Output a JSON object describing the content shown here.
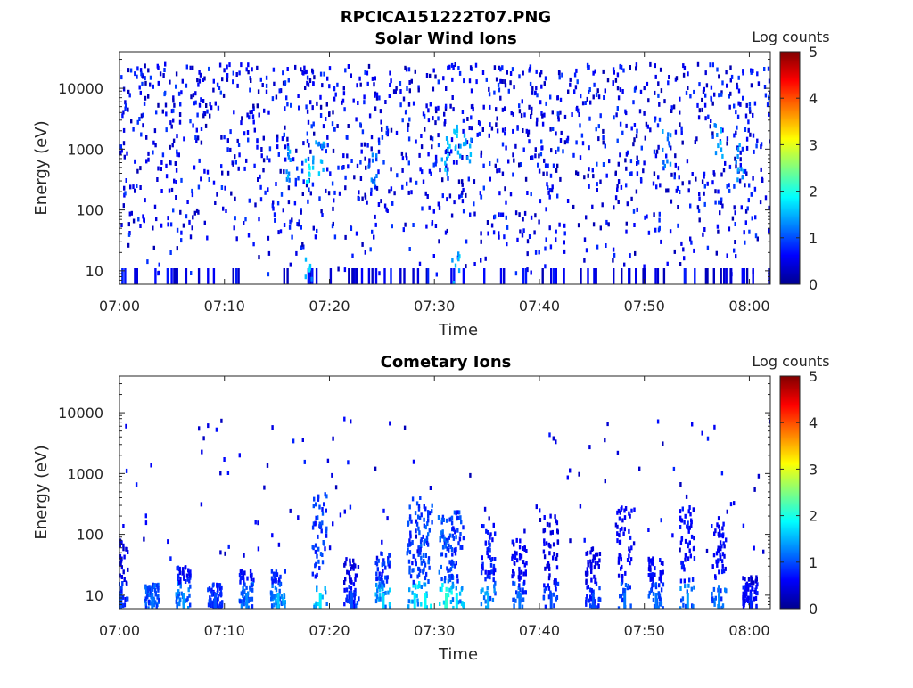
{
  "figure_title": "RPCICA151222T07.PNG",
  "colormap": [
    "#00008f",
    "#0000ff",
    "#0080ff",
    "#00ffff",
    "#80ff80",
    "#ffff00",
    "#ff8000",
    "#ff0000",
    "#800000"
  ],
  "chart_data": [
    {
      "type": "heatmap",
      "title": "Solar Wind Ions",
      "xlabel": "Time",
      "ylabel": "Energy (eV)",
      "x_range": [
        "07:00",
        "08:02"
      ],
      "x_ticks": [
        "07:00",
        "07:10",
        "07:20",
        "07:30",
        "07:40",
        "07:50",
        "08:00"
      ],
      "y_scale": "log",
      "y_range": [
        6,
        40000
      ],
      "y_ticks": [
        "10",
        "100",
        "1000",
        "10000"
      ],
      "colorbar": {
        "label": "Log counts",
        "range": [
          0,
          5
        ],
        "ticks": [
          "0",
          "1",
          "2",
          "3",
          "4",
          "5"
        ]
      },
      "description_of_data": "sparse scatter of 0-1 log counts across 10 eV-20 keV; brighter (~1.5-2) clusters near 300-1500 eV around 07:16-07:19, 07:31-07:33, 07:52, 07:57-08:01",
      "hot_spots": [
        {
          "t": "07:16",
          "e": 600,
          "v": 1.6
        },
        {
          "t": "07:18",
          "e": 450,
          "v": 1.9
        },
        {
          "t": "07:19",
          "e": 700,
          "v": 1.7
        },
        {
          "t": "07:24",
          "e": 500,
          "v": 1.4
        },
        {
          "t": "07:31",
          "e": 800,
          "v": 1.8
        },
        {
          "t": "07:32",
          "e": 1500,
          "v": 1.9
        },
        {
          "t": "07:33",
          "e": 1200,
          "v": 1.6
        },
        {
          "t": "07:52",
          "e": 1000,
          "v": 1.5
        },
        {
          "t": "07:57",
          "e": 1500,
          "v": 1.7
        },
        {
          "t": "07:59",
          "e": 600,
          "v": 1.6
        },
        {
          "t": "07:18",
          "e": 8,
          "v": 1.8
        },
        {
          "t": "07:32",
          "e": 10,
          "v": 1.7
        }
      ]
    },
    {
      "type": "heatmap",
      "title": "Cometary Ions",
      "xlabel": "Time",
      "ylabel": "Energy (eV)",
      "x_range": [
        "07:00",
        "08:02"
      ],
      "x_ticks": [
        "07:00",
        "07:10",
        "07:20",
        "07:30",
        "07:40",
        "07:50",
        "08:00"
      ],
      "y_scale": "log",
      "y_range": [
        6,
        40000
      ],
      "y_ticks": [
        "10",
        "100",
        "1000",
        "10000"
      ],
      "colorbar": {
        "label": "Log counts",
        "range": [
          0,
          5
        ],
        "ticks": [
          "0",
          "1",
          "2",
          "3",
          "4",
          "5"
        ]
      },
      "description_of_data": "low-energy (<300 eV) bursts with values up to ~2 log counts; sparse points up to ~7 keV",
      "bursts": [
        {
          "t": "07:00",
          "emax": 80,
          "v": 1.0
        },
        {
          "t": "07:03",
          "emax": 15,
          "v": 1.2
        },
        {
          "t": "07:06",
          "emax": 30,
          "v": 1.4
        },
        {
          "t": "07:09",
          "emax": 15,
          "v": 1.0
        },
        {
          "t": "07:12",
          "emax": 25,
          "v": 1.3
        },
        {
          "t": "07:15",
          "emax": 25,
          "v": 1.6
        },
        {
          "t": "07:19",
          "emax": 600,
          "v": 1.8
        },
        {
          "t": "07:22",
          "emax": 40,
          "v": 1.0
        },
        {
          "t": "07:25",
          "emax": 50,
          "v": 1.7
        },
        {
          "t": "07:28",
          "emax": 400,
          "v": 1.8
        },
        {
          "t": "07:29",
          "emax": 300,
          "v": 1.9
        },
        {
          "t": "07:31",
          "emax": 200,
          "v": 2.1
        },
        {
          "t": "07:32",
          "emax": 250,
          "v": 1.8
        },
        {
          "t": "07:35",
          "emax": 150,
          "v": 1.5
        },
        {
          "t": "07:38",
          "emax": 80,
          "v": 1.2
        },
        {
          "t": "07:41",
          "emax": 200,
          "v": 1.0
        },
        {
          "t": "07:45",
          "emax": 60,
          "v": 1.0
        },
        {
          "t": "07:48",
          "emax": 300,
          "v": 1.2
        },
        {
          "t": "07:51",
          "emax": 40,
          "v": 1.2
        },
        {
          "t": "07:54",
          "emax": 300,
          "v": 1.4
        },
        {
          "t": "07:57",
          "emax": 150,
          "v": 1.3
        },
        {
          "t": "08:00",
          "emax": 20,
          "v": 0.8
        }
      ]
    }
  ]
}
